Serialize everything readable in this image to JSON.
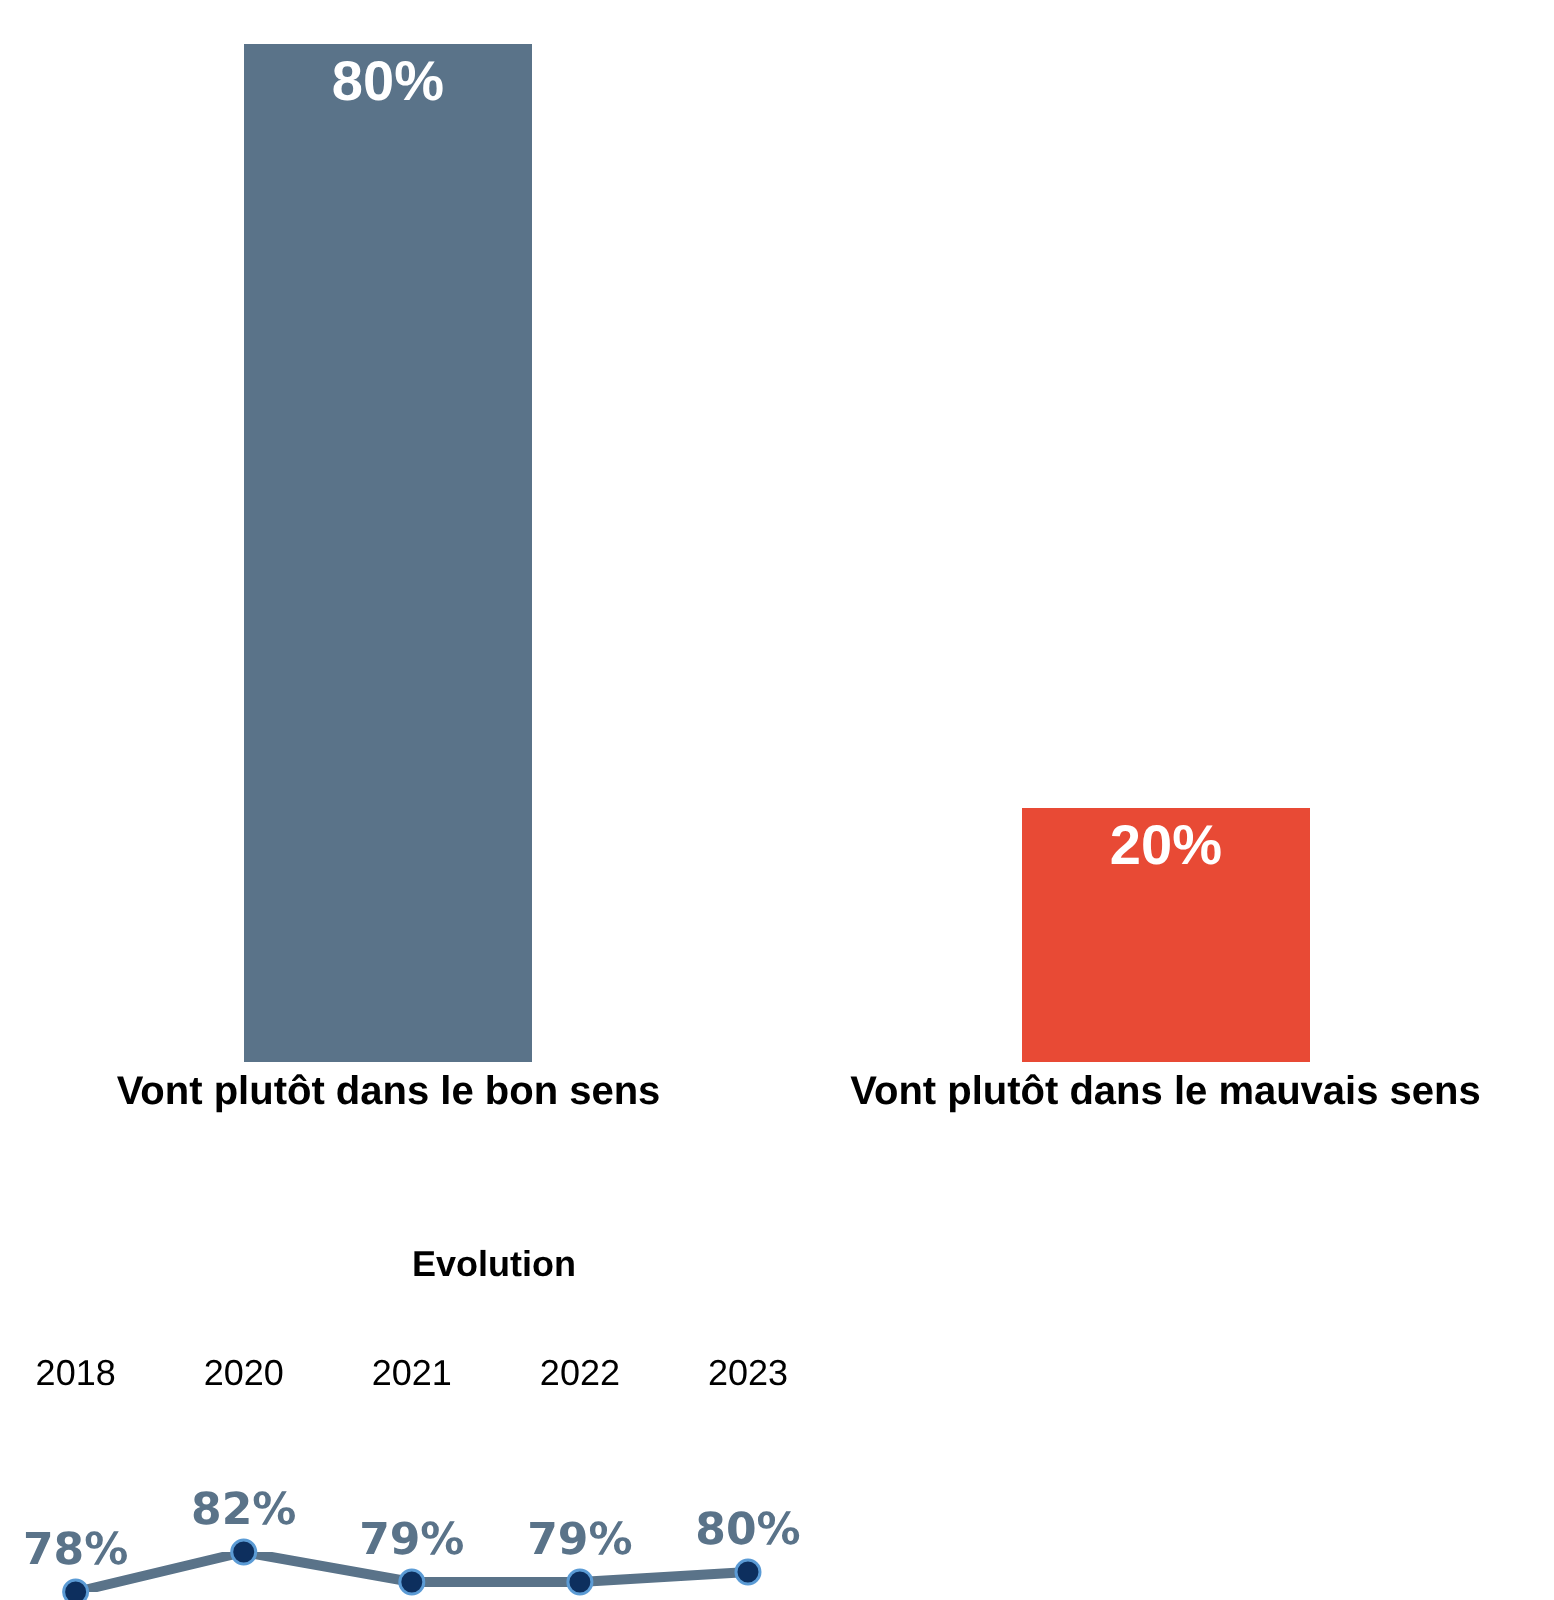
{
  "chart_data": [
    {
      "type": "bar",
      "categories": [
        "Vont plutôt dans le bon sens",
        "Vont plutôt dans le mauvais sens"
      ],
      "values": [
        80,
        20
      ],
      "colors": [
        "#5a7389",
        "#e84a35"
      ],
      "value_labels": [
        "80%",
        "20%"
      ]
    },
    {
      "type": "line",
      "title": "Evolution",
      "categories": [
        "2018",
        "2020",
        "2021",
        "2022",
        "2023"
      ],
      "series": [
        {
          "color": "#5a7389",
          "values": [
            78,
            82,
            79,
            79,
            80
          ],
          "value_labels": [
            "78%",
            "82%",
            "79%",
            "79%",
            "80%"
          ]
        }
      ],
      "marker": "circle",
      "line_style": "solid"
    }
  ]
}
